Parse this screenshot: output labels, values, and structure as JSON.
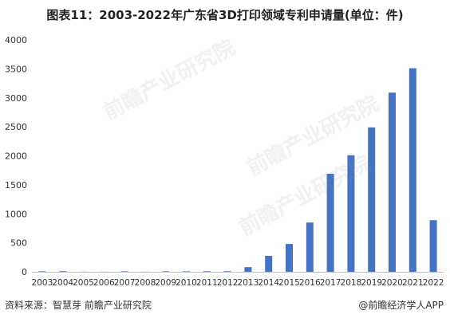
{
  "title": "图表11：2003-2022年广东省3D打印领域专利申请量(单位：件)",
  "source": "资料来源：智慧芽 前瞻产业研究院",
  "brand": "@前瞻经济学人APP",
  "watermark": "前瞻产业研究院",
  "colors": {
    "bar": "#4472c4",
    "axis": "#bfbfbf",
    "text": "#333333"
  },
  "chart_data": {
    "type": "bar",
    "title": "图表11：2003-2022年广东省3D打印领域专利申请量(单位：件)",
    "categories": [
      "2003",
      "2004",
      "2005",
      "2006",
      "2007",
      "2008",
      "2009",
      "2010",
      "2011",
      "2012",
      "2013",
      "2014",
      "2015",
      "2016",
      "2017",
      "2018",
      "2019",
      "2020",
      "2021",
      "2022"
    ],
    "values": [
      8,
      10,
      2,
      2,
      8,
      2,
      8,
      8,
      10,
      10,
      80,
      275,
      480,
      850,
      1690,
      2010,
      2490,
      3090,
      3510,
      890
    ],
    "y_ticks": [
      0,
      500,
      1000,
      1500,
      2000,
      2500,
      3000,
      3500,
      4000
    ],
    "ylim": [
      0,
      4000
    ],
    "grid": false,
    "legend": "none"
  }
}
